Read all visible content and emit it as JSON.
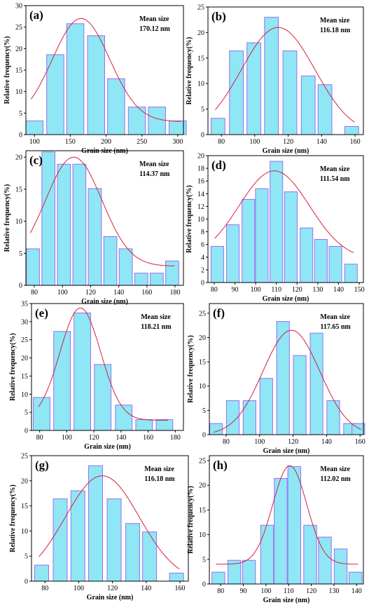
{
  "colors": {
    "bar_fill": "#8fe6f5",
    "bar_edge": "#9b6ff0",
    "fit_line": "#d4213d"
  },
  "chart_data": [
    {
      "type": "bar",
      "label": "(a)",
      "mean_label": "Mean size",
      "mean_value": "170.12 nm",
      "xlabel": "Grain size (nm)",
      "ylabel": "Relative frequency(%)",
      "xlim": [
        88,
        308
      ],
      "ylim": [
        0,
        30
      ],
      "xticks": [
        100,
        150,
        200,
        250,
        300
      ],
      "yticks": [
        0,
        5,
        10,
        15,
        20,
        25,
        30
      ],
      "bin_width": 24,
      "x": [
        100,
        129,
        157,
        186,
        214,
        243,
        271,
        300
      ],
      "values": [
        3.2,
        18.6,
        25.8,
        23.0,
        13.0,
        6.4,
        6.4,
        3.2
      ],
      "fit": {
        "mu": 165,
        "sigma": 40,
        "amp": 24,
        "base": 3
      }
    },
    {
      "type": "bar",
      "label": "(b)",
      "mean_label": "Mean size",
      "mean_value": "116.18 nm",
      "xlabel": "Grain size (nm)",
      "ylabel": "Relative frequency(%)",
      "xlim": [
        72,
        165
      ],
      "ylim": [
        0,
        25
      ],
      "xticks": [
        80,
        100,
        120,
        140,
        160
      ],
      "yticks": [
        0,
        5,
        10,
        15,
        20,
        25
      ],
      "bin_width": 8.3,
      "x": [
        78,
        88,
        98,
        108,
        118,
        128,
        138,
        148,
        158
      ],
      "values": [
        3.2,
        16.4,
        18.0,
        23.0,
        16.4,
        11.5,
        9.8,
        0,
        1.6
      ],
      "x_override": [
        78,
        89,
        99.5,
        110,
        121,
        132,
        142,
        158
      ],
      "values_override": [
        3.2,
        16.4,
        18.0,
        23.0,
        16.4,
        11.5,
        9.8,
        1.6
      ],
      "fit": {
        "mu": 114,
        "sigma": 22,
        "amp": 21,
        "base": 0
      }
    },
    {
      "type": "bar",
      "label": "(c)",
      "mean_label": "Mean size",
      "mean_value": "114.37 nm",
      "xlabel": "Grain size (nm)",
      "ylabel": "Relative frequency(%)",
      "xlim": [
        74,
        186
      ],
      "ylim": [
        0,
        21
      ],
      "xticks": [
        80,
        100,
        120,
        140,
        160,
        180
      ],
      "yticks": [
        0,
        5,
        10,
        15,
        20
      ],
      "bin_width": 9.3,
      "x": [
        79,
        90,
        101,
        112,
        123,
        134,
        145,
        156,
        167,
        178
      ],
      "values": [
        5.7,
        20.8,
        18.9,
        18.9,
        15.1,
        7.6,
        5.7,
        1.9,
        1.9,
        3.8
      ],
      "fit": {
        "mu": 108,
        "sigma": 20,
        "amp": 17,
        "base": 3
      }
    },
    {
      "type": "bar",
      "label": "(d)",
      "mean_label": "Mean size",
      "mean_value": "111.54 nm",
      "xlabel": "Grain size (nm)",
      "ylabel": "Relative frequency(%)",
      "xlim": [
        77,
        152
      ],
      "ylim": [
        0,
        20
      ],
      "xticks": [
        80,
        90,
        100,
        110,
        120,
        130,
        140,
        150
      ],
      "yticks": [
        0,
        2,
        4,
        6,
        8,
        10,
        12,
        14,
        16,
        18,
        20
      ],
      "bin_width": 6.1,
      "x": [
        81.5,
        89,
        96.5,
        103,
        110,
        117,
        124.5,
        131.5,
        138.5,
        146
      ],
      "values": [
        5.7,
        9.1,
        13.1,
        14.8,
        19.1,
        14.3,
        8.6,
        6.8,
        5.7,
        2.9
      ],
      "fit": {
        "mu": 109,
        "sigma": 17,
        "amp": 14,
        "base": 3.6
      }
    },
    {
      "type": "bar",
      "label": "(e)",
      "mean_label": "Mean size",
      "mean_value": "118.21 nm",
      "xlabel": "Grain size (nm)",
      "ylabel": "Relative frequency(%)",
      "xlim": [
        74,
        186
      ],
      "ylim": [
        0,
        35
      ],
      "xticks": [
        80,
        100,
        120,
        140,
        160,
        180
      ],
      "yticks": [
        0,
        5,
        10,
        15,
        20,
        25,
        30,
        35
      ],
      "bin_width": 12.3,
      "x": [
        81.5,
        96.5,
        111.5,
        126.5,
        142,
        157,
        172
      ],
      "values": [
        9.1,
        27.3,
        32.4,
        18.2,
        7.0,
        3.0,
        3.0
      ],
      "fit": {
        "mu": 110,
        "sigma": 15,
        "amp": 31,
        "base": 2.8
      }
    },
    {
      "type": "bar",
      "label": "(f)",
      "mean_label": "Mean size",
      "mean_value": "117.65 nm",
      "xlabel": "Grain size (nm)",
      "ylabel": "Relative frequency(%)",
      "xlim": [
        70,
        162
      ],
      "ylim": [
        0,
        27
      ],
      "xticks": [
        80,
        100,
        120,
        140,
        160
      ],
      "yticks": [
        0,
        5,
        10,
        15,
        20,
        25
      ],
      "bin_width": 7.6,
      "x": [
        74,
        84,
        94,
        104,
        114,
        124,
        134,
        144,
        154,
        159
      ],
      "values": [
        2.3,
        7.0,
        7.0,
        11.6,
        23.3,
        16.3,
        20.9,
        7.0,
        2.3,
        2.3
      ],
      "fit": {
        "mu": 119,
        "sigma": 17,
        "amp": 21.5,
        "base": 0
      }
    },
    {
      "type": "bar",
      "label": "(g)",
      "mean_label": "Mean size",
      "mean_value": "116.18 nm",
      "xlabel": "Grain size (nm)",
      "ylabel": "Relative frequency(%)",
      "xlim": [
        72,
        165
      ],
      "ylim": [
        0,
        25
      ],
      "xticks": [
        80,
        100,
        120,
        140,
        160
      ],
      "yticks": [
        0,
        5,
        10,
        15,
        20,
        25
      ],
      "bin_width": 8.3,
      "x": [
        78,
        89,
        99.5,
        110,
        121,
        132,
        142,
        158
      ],
      "values": [
        3.2,
        16.4,
        18.0,
        23.0,
        16.4,
        11.5,
        9.8,
        1.6
      ],
      "fit": {
        "mu": 114,
        "sigma": 22,
        "amp": 21,
        "base": 0
      }
    },
    {
      "type": "bar",
      "label": "(h)",
      "mean_label": "Mean size",
      "mean_value": "112.02 nm",
      "xlabel": "Grain size (nm)",
      "ylabel": "Relative frequency(%)",
      "xlim": [
        75,
        143
      ],
      "ylim": [
        0,
        26
      ],
      "xticks": [
        80,
        90,
        100,
        110,
        120,
        130,
        140
      ],
      "yticks": [
        0,
        5,
        10,
        15,
        20,
        25
      ],
      "bin_width": 5.7,
      "x": [
        79,
        86,
        92.5,
        100.5,
        106.5,
        112.5,
        119.5,
        126,
        133,
        139.5
      ],
      "values": [
        2.4,
        4.8,
        4.8,
        11.9,
        21.4,
        23.8,
        11.9,
        9.5,
        7.1,
        2.4
      ],
      "fit": {
        "mu": 110.5,
        "sigma": 7.5,
        "amp": 20,
        "base": 4
      }
    }
  ]
}
